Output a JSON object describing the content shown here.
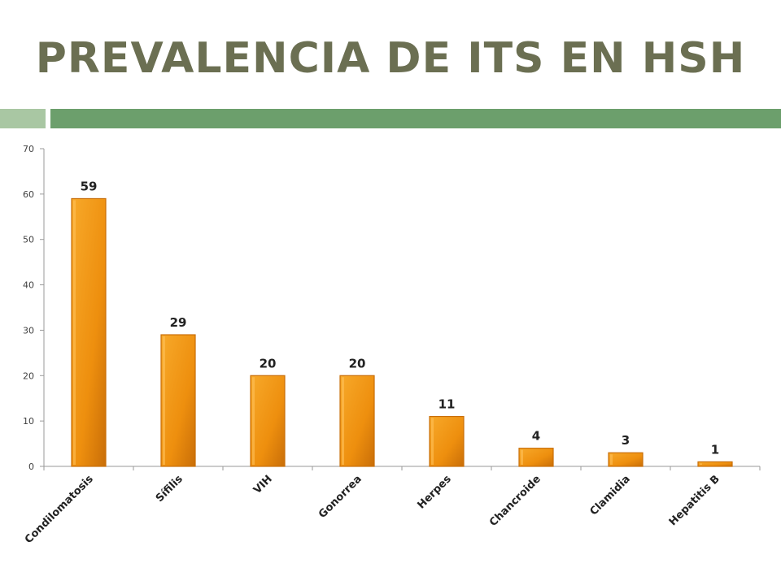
{
  "slide": {
    "title": "PREVALENCIA DE ITS EN HSH",
    "accent_light": "#a9c7a3",
    "accent_dark": "#6c9f6c",
    "title_color": "#6b6f52"
  },
  "chart_data": {
    "type": "bar",
    "categories": [
      "Condilomatosis",
      "Sífilis",
      "VIH",
      "Gonorrea",
      "Herpes",
      "Chancroide",
      "Clamidia",
      "Hepatitis B"
    ],
    "values": [
      59,
      29,
      20,
      20,
      11,
      4,
      3,
      1
    ],
    "ylim": [
      0,
      70
    ],
    "yticks": [
      0,
      10,
      20,
      30,
      40,
      50,
      60,
      70
    ],
    "grid": false,
    "bar_color": "#f29a1a",
    "bar_color_dark": "#c96e08",
    "data_labels": true
  }
}
